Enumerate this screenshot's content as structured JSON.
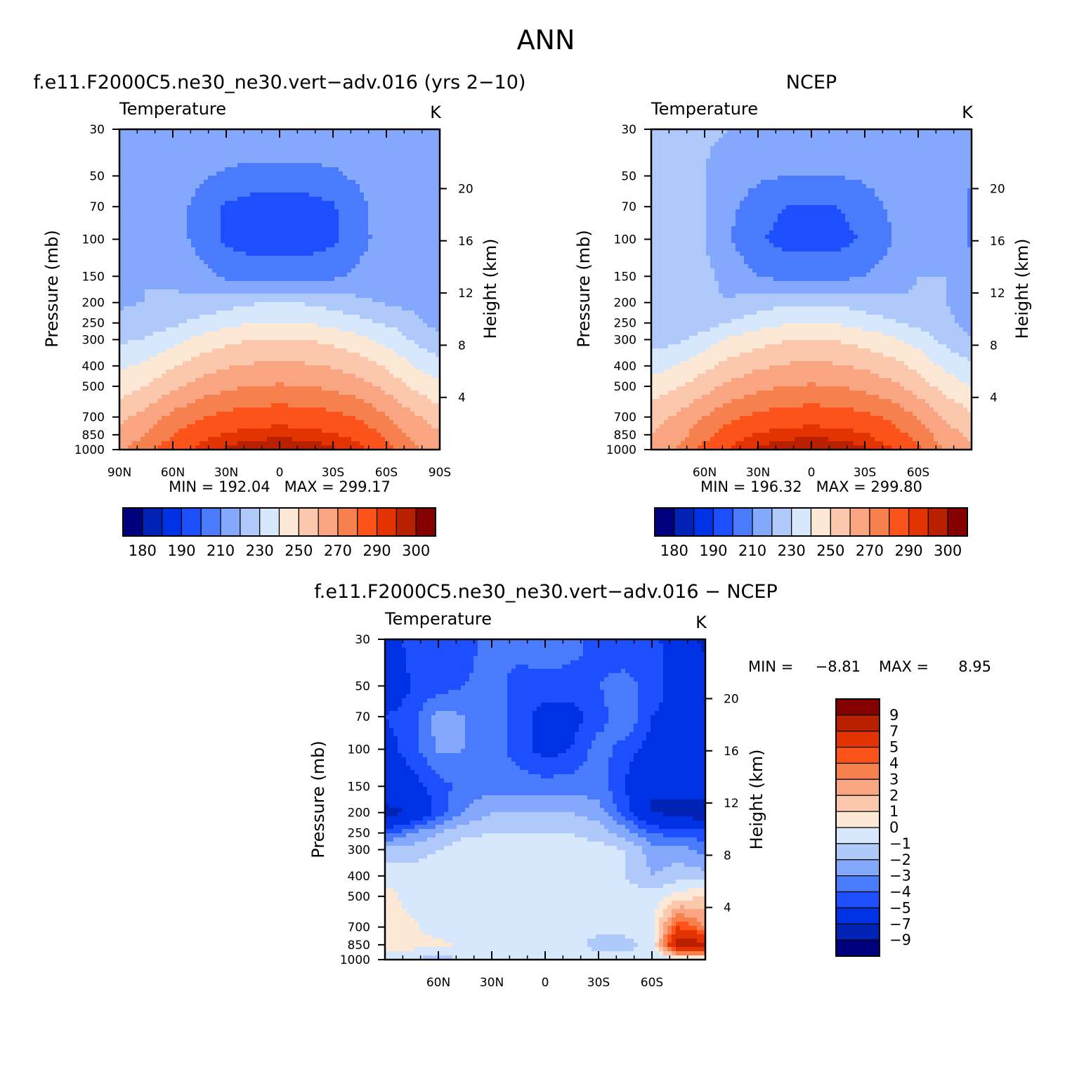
{
  "page_title": "ANN",
  "palettes": {
    "abs": [
      "#00007f",
      "#0022b5",
      "#0032e5",
      "#1e4fff",
      "#4a7bfc",
      "#83a8fc",
      "#b0c9fb",
      "#d7e8fc",
      "#fde8d6",
      "#fbc7ad",
      "#f9a582",
      "#f7804f",
      "#fb5319",
      "#e33300",
      "#b82000",
      "#850000"
    ],
    "diff": [
      "#00007f",
      "#0022b5",
      "#0032e5",
      "#1e4fff",
      "#4a7bfc",
      "#83a8fc",
      "#b0c9fb",
      "#d7e8fc",
      "#fde8d6",
      "#fbc7ad",
      "#f9a582",
      "#f7804f",
      "#fb5319",
      "#e33300",
      "#b82000",
      "#850000"
    ]
  },
  "panels": [
    {
      "id": "model",
      "title": "f.e11.F2000C5.ne30_ne30.vert−adv.016 (yrs 2−10)",
      "left_string": "Temperature",
      "right_string": "K",
      "ylabel": "Pressure (mb)",
      "ylabel_right": "Height (km)",
      "minmax": "MIN = 192.04   MAX = 299.17"
    },
    {
      "id": "obs",
      "title": "NCEP",
      "left_string": "Temperature",
      "right_string": "K",
      "ylabel": "Pressure (mb)",
      "ylabel_right": "Height (km)",
      "minmax": "MIN = 196.32   MAX = 299.80"
    },
    {
      "id": "diff",
      "title": "f.e11.F2000C5.ne30_ne30.vert−adv.016 − NCEP",
      "left_string": "Temperature",
      "right_string": "K",
      "ylabel": "Pressure (mb)",
      "ylabel_right": "Height (km)",
      "min_label": "MIN =",
      "min_value": "−8.81",
      "max_label": "MAX =",
      "max_value": "8.95"
    }
  ],
  "colorbar_abs_labels": [
    "180",
    "190",
    "210",
    "230",
    "250",
    "270",
    "290",
    "300"
  ],
  "colorbar_diff_labels": [
    "9",
    "7",
    "5",
    "4",
    "3",
    "2",
    "1",
    "0",
    "−1",
    "−2",
    "−3",
    "−4",
    "−5",
    "−7",
    "−9"
  ],
  "chart_data": [
    {
      "type": "heatmap",
      "title": "f.e11.F2000C5.ne30_ne30.vert−adv.016 (yrs 2−10)",
      "left_string": "Temperature",
      "units": "K",
      "ylabel": "Pressure (mb)",
      "ylabel_right": "Height (km)",
      "xlim": [
        90,
        -90
      ],
      "x_ticks": [
        90,
        60,
        30,
        0,
        -30,
        -60,
        -90
      ],
      "x_tick_labels": [
        "90N",
        "60N",
        "30N",
        "0",
        "30S",
        "60S",
        "90S"
      ],
      "y_scale": "log",
      "ylim": [
        1000,
        30
      ],
      "y_ticks": [
        30,
        50,
        70,
        100,
        150,
        200,
        250,
        300,
        400,
        500,
        700,
        850,
        1000
      ],
      "height_ticks_km": [
        4,
        8,
        12,
        16,
        20
      ],
      "levels": [
        180,
        185,
        190,
        200,
        210,
        220,
        230,
        240,
        250,
        260,
        270,
        280,
        290,
        295,
        300
      ],
      "min": 192.04,
      "max": 299.17,
      "model": "model",
      "x_grid": [
        90,
        75,
        60,
        45,
        30,
        15,
        0,
        -15,
        -30,
        -45,
        -60,
        -75,
        -90
      ],
      "p_grid": [
        1000,
        850,
        700,
        500,
        400,
        300,
        250,
        200,
        150,
        100,
        70,
        50,
        30
      ],
      "values": [
        [
          268,
          276,
          286,
          292,
          296,
          298.5,
          299,
          298.5,
          296,
          292,
          284,
          272,
          264
        ],
        [
          263,
          270,
          280,
          287,
          291,
          293,
          294,
          293,
          291,
          287,
          278,
          268,
          261
        ],
        [
          258,
          264,
          273,
          279,
          283,
          285,
          286,
          285,
          283,
          279,
          271,
          262,
          255
        ],
        [
          245,
          250,
          258,
          264,
          268,
          270,
          271,
          270,
          268,
          264,
          257,
          248,
          242
        ],
        [
          238,
          242,
          249,
          255,
          259,
          261,
          262,
          261,
          259,
          255,
          249,
          240,
          234
        ],
        [
          228,
          231,
          237,
          243,
          247,
          250,
          251,
          250,
          247,
          243,
          237,
          229,
          222
        ],
        [
          222,
          224,
          228,
          233,
          237,
          240,
          241,
          240,
          237,
          233,
          229,
          224,
          216
        ],
        [
          219,
          220,
          221,
          223,
          226,
          229,
          230,
          229,
          226,
          222,
          219,
          216,
          210
        ],
        [
          219,
          220,
          219,
          214,
          208,
          206,
          206,
          206,
          208,
          213,
          217,
          215,
          210
        ],
        [
          219,
          220,
          216,
          206,
          198,
          195,
          194,
          195,
          198,
          206,
          216,
          215,
          210
        ],
        [
          218,
          219,
          216,
          206,
          199,
          196,
          196,
          196,
          199,
          207,
          216,
          216,
          211
        ],
        [
          218,
          219,
          218,
          212,
          208,
          206,
          206,
          206,
          208,
          212,
          217,
          217,
          211
        ],
        [
          218,
          219,
          219,
          219,
          219,
          219,
          219,
          219,
          219,
          218,
          218,
          217,
          211
        ]
      ]
    },
    {
      "type": "heatmap",
      "title": "NCEP",
      "left_string": "Temperature",
      "units": "K",
      "ylabel": "Pressure (mb)",
      "ylabel_right": "Height (km)",
      "xlim": [
        90,
        -90
      ],
      "x_ticks": [
        60,
        30,
        0,
        -30,
        -60
      ],
      "x_tick_labels": [
        "60N",
        "30N",
        "0",
        "30S",
        "60S"
      ],
      "y_scale": "log",
      "ylim": [
        1000,
        30
      ],
      "y_ticks": [
        30,
        50,
        70,
        100,
        150,
        200,
        250,
        300,
        400,
        500,
        700,
        850,
        1000
      ],
      "height_ticks_km": [
        4,
        8,
        12,
        16,
        20
      ],
      "levels": [
        180,
        185,
        190,
        200,
        210,
        220,
        230,
        240,
        250,
        260,
        270,
        280,
        290,
        295,
        300
      ],
      "min": 196.32,
      "max": 299.8,
      "model": "obs",
      "x_grid": [
        90,
        75,
        60,
        45,
        30,
        15,
        0,
        -15,
        -30,
        -45,
        -60,
        -75,
        -90
      ],
      "p_grid": [
        1000,
        850,
        700,
        500,
        400,
        300,
        250,
        200,
        150,
        100,
        70,
        50,
        30
      ],
      "values": [
        [
          262,
          272,
          283,
          291,
          296,
          298.5,
          299.5,
          298.5,
          296,
          291,
          283,
          268,
          262
        ],
        [
          260,
          266,
          277,
          286,
          291,
          293,
          294,
          293,
          291,
          285,
          276,
          264,
          258
        ],
        [
          256,
          262,
          270,
          278,
          283,
          285,
          286,
          285,
          283,
          278,
          269,
          259,
          252
        ],
        [
          244,
          249,
          256,
          263,
          267,
          270,
          271,
          270,
          267,
          263,
          255,
          246,
          240
        ],
        [
          236,
          240,
          247,
          254,
          258,
          261,
          262,
          261,
          258,
          254,
          247,
          238,
          232
        ],
        [
          226,
          228,
          235,
          242,
          246,
          249,
          250,
          249,
          246,
          242,
          236,
          227,
          221
        ],
        [
          221,
          222,
          225,
          231,
          236,
          239,
          240,
          239,
          236,
          232,
          227,
          222,
          216
        ],
        [
          224,
          223,
          220,
          221,
          225,
          228,
          229,
          228,
          225,
          222,
          221,
          220,
          218
        ],
        [
          226,
          225,
          223,
          216,
          210,
          207,
          207,
          207,
          210,
          215,
          220,
          220,
          215
        ],
        [
          225,
          226,
          220,
          210,
          201,
          197,
          196,
          197,
          201,
          209,
          219,
          220,
          208
        ],
        [
          221,
          221,
          220,
          212,
          204,
          200,
          200,
          200,
          204,
          212,
          219,
          220,
          208
        ],
        [
          220,
          220,
          220,
          216,
          212,
          210,
          210,
          210,
          212,
          216,
          219,
          219,
          210
        ],
        [
          220,
          221,
          221,
          220,
          220,
          220,
          220,
          220,
          220,
          220,
          219,
          219,
          212
        ]
      ]
    },
    {
      "type": "heatmap",
      "title": "f.e11.F2000C5.ne30_ne30.vert−adv.016 − NCEP",
      "left_string": "Temperature",
      "units": "K",
      "ylabel": "Pressure (mb)",
      "ylabel_right": "Height (km)",
      "xlim": [
        90,
        -90
      ],
      "x_ticks": [
        60,
        30,
        0,
        -30,
        -60
      ],
      "x_tick_labels": [
        "60N",
        "30N",
        "0",
        "30S",
        "60S"
      ],
      "y_scale": "log",
      "ylim": [
        1000,
        30
      ],
      "y_ticks": [
        30,
        50,
        70,
        100,
        150,
        200,
        250,
        300,
        400,
        500,
        700,
        850,
        1000
      ],
      "height_ticks_km": [
        4,
        8,
        12,
        16,
        20
      ],
      "levels": [
        -9,
        -7,
        -5,
        -4,
        -3,
        -2,
        -1,
        0,
        1,
        2,
        3,
        4,
        5,
        7,
        9
      ],
      "min": -8.81,
      "max": 8.95,
      "model": "diff",
      "x_grid": [
        90,
        75,
        60,
        45,
        30,
        15,
        0,
        -15,
        -30,
        -45,
        -60,
        -75,
        -90
      ],
      "p_grid": [
        1000,
        850,
        700,
        500,
        400,
        300,
        250,
        200,
        150,
        100,
        70,
        50,
        30
      ],
      "values": [
        [
          -0.5,
          -0.5,
          -2,
          -0.5,
          -0.5,
          -0.5,
          -0.5,
          -0.5,
          -0.5,
          -0.5,
          -1,
          -0.5,
          -0.5
        ],
        [
          0.5,
          0.3,
          0.3,
          -0.3,
          -0.3,
          -0.5,
          -0.5,
          -0.5,
          -1.5,
          -1.5,
          -0.5,
          8,
          8
        ],
        [
          0.5,
          0.2,
          -0.5,
          -0.5,
          -0.5,
          -0.5,
          -0.5,
          -0.5,
          -0.5,
          -0.5,
          -0.5,
          5,
          3
        ],
        [
          0.5,
          -0.5,
          -0.5,
          -0.5,
          -0.5,
          -0.5,
          -0.5,
          -0.5,
          -0.5,
          -0.5,
          -0.5,
          0.5,
          1
        ],
        [
          -0.5,
          -0.5,
          -0.5,
          -0.5,
          -0.5,
          -0.5,
          -0.5,
          -0.5,
          -0.5,
          -1,
          -2,
          -1.5,
          -1.5
        ],
        [
          -1.5,
          -1.5,
          -1,
          -0.5,
          -0.5,
          -0.5,
          -0.5,
          -0.5,
          -0.5,
          -1,
          -2.5,
          -2.5,
          -3.5
        ],
        [
          -4.5,
          -3,
          -2,
          -1.2,
          -1,
          -1,
          -1,
          -1,
          -1.5,
          -2.5,
          -4,
          -4.5,
          -4.5
        ],
        [
          -7.5,
          -7,
          -4.5,
          -3,
          -2,
          -2,
          -2,
          -2,
          -2.5,
          -4.5,
          -7,
          -7.5,
          -8.5
        ],
        [
          -6,
          -5.5,
          -4.5,
          -3.5,
          -3.5,
          -3.5,
          -3.5,
          -3.5,
          -3.5,
          -5,
          -7,
          -6.5,
          -5
        ],
        [
          -5.5,
          -4.5,
          -2.8,
          -3,
          -3.5,
          -4.5,
          -5.5,
          -5,
          -3.5,
          -4.5,
          -5.5,
          -5.5,
          -5
        ],
        [
          -5,
          -4.5,
          -2.5,
          -3,
          -3.5,
          -4.5,
          -5.5,
          -5.5,
          -4.5,
          -3,
          -5,
          -5.5,
          -5
        ],
        [
          -6,
          -5,
          -4.5,
          -4,
          -3.5,
          -4.5,
          -4.5,
          -4.5,
          -4,
          -3.5,
          -4.5,
          -5.5,
          -6
        ],
        [
          -6,
          -4.5,
          -4.5,
          -4.5,
          -3.5,
          -3.5,
          -3,
          -3.5,
          -4.5,
          -5,
          -4.5,
          -6,
          -7.5
        ]
      ]
    }
  ]
}
